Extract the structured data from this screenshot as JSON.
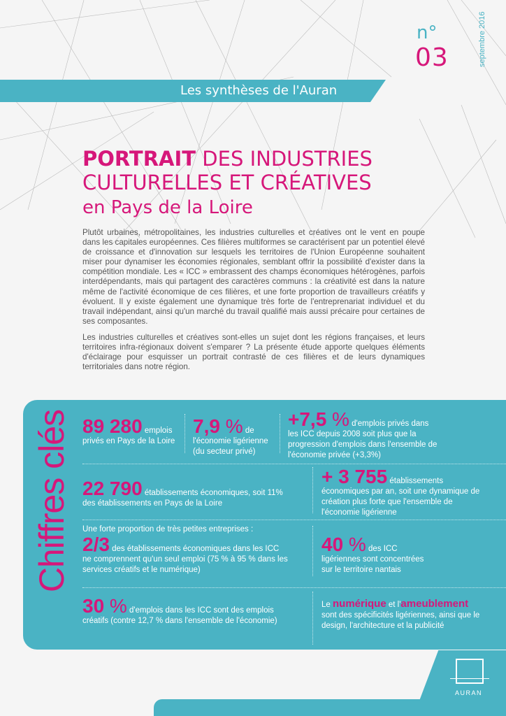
{
  "header": {
    "issue_prefix": "n°",
    "issue_number": "03",
    "date": "septembre 2016",
    "series": "Les synthèses de l'Auran"
  },
  "title": {
    "bold": "PORTRAIT",
    "rest": " DES INDUSTRIES",
    "line2": "CULTURELLES ET CRÉATIVES",
    "line3": "en Pays de la Loire"
  },
  "intro": [
    "Plutôt urbaines, métropolitaines, les industries culturelles et créatives ont le vent en poupe dans les capitales européennes. Ces filières multiformes se caractérisent par un potentiel élevé de croissance et d'innovation sur lesquels les territoires de l'Union Européenne souhaitent miser pour dynamiser les économies régionales, semblant offrir la possibilité d'exister dans la compétition mondiale. Les « ICC » embrassent des champs économiques hétérogènes, parfois interdépendants, mais qui partagent des caractères communs : la créativité est dans la nature même de l'activité économique de ces filières, et une forte proportion de travailleurs créatifs y évoluent. Il y existe également une dynamique très forte de l'entreprenariat individuel et du travail indépendant, ainsi qu'un marché du travail qualifié mais aussi précaire pour certaines de ses composantes.",
    "Les industries culturelles et créatives sont-elles un sujet dont les régions françaises, et leurs territoires infra-régionaux doivent s'emparer ? La présente étude apporte quelques éléments d'éclairage pour esquisser un portrait contrasté de ces filières et de leurs dynamiques territoriales dans notre région."
  ],
  "key_figures": {
    "heading": "Chiffres clés",
    "f1": {
      "value": "89 280",
      "text1": " emplois",
      "text2": "privés en Pays de la Loire"
    },
    "f2": {
      "value": "7,9",
      "unit": " %",
      "text1": " de",
      "text2": "l'économie ligérienne",
      "text3": "(du secteur privé)"
    },
    "f3": {
      "value": "+7,5",
      "unit": " %",
      "text1": " d'emplois privés dans",
      "text2": "les ICC depuis 2008 soit plus que la progression d'emplois dans l'ensemble de l'économie privée (+3,3%)"
    },
    "f4": {
      "value": "22 790",
      "text1": " établissements économiques, soit 11%",
      "text2": "des établissements en Pays de la Loire"
    },
    "f5": {
      "value": "+ 3 755",
      "text1": " établissements",
      "text2": "économiques par an, soit une dynamique de création plus forte que l'ensemble de l'économie ligérienne"
    },
    "f6": {
      "intro": "Une forte proportion de très petites entreprises :",
      "value": "2/3",
      "text1": " des établissements économiques dans les ICC",
      "text2": "ne comprennent qu'un seul emploi (75 % à 95 % dans les services créatifs et le numérique)"
    },
    "f7": {
      "value": "40",
      "unit": " %",
      "text1": " des ICC",
      "text2": "ligériennes sont concentrées sur le territoire nantais"
    },
    "f8": {
      "value": "30",
      "unit": " %",
      "text1": " d'emplois dans les ICC sont des emplois",
      "text2": "créatifs (contre 12,7 % dans l'ensemble de l'économie)"
    },
    "f9": {
      "pre": "Le ",
      "hl1": "numérique",
      "mid": " et l'",
      "hl2": "ameublement",
      "text2": "sont des spécificités ligériennes, ainsi que le design, l'architecture et la publicité"
    }
  },
  "logo": {
    "text": "AURAN"
  },
  "colors": {
    "teal": "#4ab3c4",
    "magenta": "#d6177a"
  }
}
